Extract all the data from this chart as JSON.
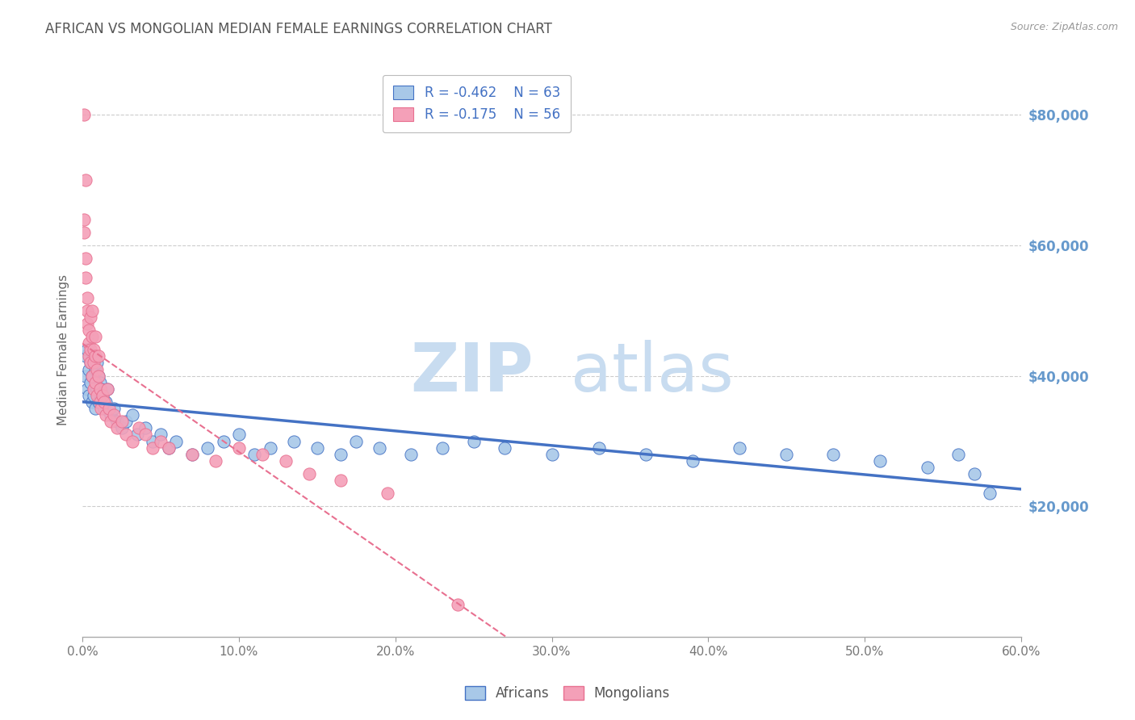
{
  "title": "AFRICAN VS MONGOLIAN MEDIAN FEMALE EARNINGS CORRELATION CHART",
  "source": "Source: ZipAtlas.com",
  "ylabel": "Median Female Earnings",
  "xlim": [
    0.0,
    0.6
  ],
  "ylim": [
    0,
    88000
  ],
  "yticks": [
    0,
    20000,
    40000,
    60000,
    80000
  ],
  "ytick_labels": [
    "",
    "$20,000",
    "$40,000",
    "$60,000",
    "$80,000"
  ],
  "xtick_labels": [
    "0.0%",
    "10.0%",
    "20.0%",
    "30.0%",
    "40.0%",
    "50.0%",
    "60.0%"
  ],
  "xticks": [
    0.0,
    0.1,
    0.2,
    0.3,
    0.4,
    0.5,
    0.6
  ],
  "african_color": "#A8C8E8",
  "mongolian_color": "#F4A0B8",
  "african_line_color": "#4472C4",
  "mongolian_line_color": "#E87090",
  "background_color": "#FFFFFF",
  "grid_color": "#CCCCCC",
  "title_color": "#555555",
  "ytick_color": "#6699CC",
  "legend_r_african": "R = -0.462",
  "legend_n_african": "N = 63",
  "legend_r_mongolian": "R = -0.175",
  "legend_n_mongolian": "N = 56",
  "african_x": [
    0.002,
    0.002,
    0.003,
    0.003,
    0.004,
    0.004,
    0.005,
    0.005,
    0.006,
    0.006,
    0.007,
    0.007,
    0.008,
    0.008,
    0.009,
    0.009,
    0.01,
    0.01,
    0.011,
    0.012,
    0.013,
    0.014,
    0.015,
    0.016,
    0.018,
    0.02,
    0.022,
    0.025,
    0.028,
    0.032,
    0.035,
    0.04,
    0.045,
    0.05,
    0.055,
    0.06,
    0.07,
    0.08,
    0.09,
    0.1,
    0.11,
    0.12,
    0.135,
    0.15,
    0.165,
    0.175,
    0.19,
    0.21,
    0.23,
    0.25,
    0.27,
    0.3,
    0.33,
    0.36,
    0.39,
    0.42,
    0.45,
    0.48,
    0.51,
    0.54,
    0.56,
    0.57,
    0.58
  ],
  "african_y": [
    43000,
    40000,
    44000,
    38000,
    41000,
    37000,
    42000,
    39000,
    40000,
    36000,
    43000,
    37000,
    41000,
    35000,
    42000,
    38000,
    40000,
    36000,
    39000,
    38000,
    37000,
    35000,
    36000,
    38000,
    34000,
    35000,
    33000,
    32000,
    33000,
    34000,
    31000,
    32000,
    30000,
    31000,
    29000,
    30000,
    28000,
    29000,
    30000,
    31000,
    28000,
    29000,
    30000,
    29000,
    28000,
    30000,
    29000,
    28000,
    29000,
    30000,
    29000,
    28000,
    29000,
    28000,
    27000,
    29000,
    28000,
    28000,
    27000,
    26000,
    28000,
    25000,
    22000
  ],
  "mongolian_x": [
    0.001,
    0.001,
    0.001,
    0.002,
    0.002,
    0.002,
    0.003,
    0.003,
    0.003,
    0.004,
    0.004,
    0.004,
    0.005,
    0.005,
    0.005,
    0.006,
    0.006,
    0.006,
    0.007,
    0.007,
    0.007,
    0.008,
    0.008,
    0.008,
    0.009,
    0.009,
    0.01,
    0.01,
    0.011,
    0.011,
    0.012,
    0.013,
    0.014,
    0.015,
    0.016,
    0.017,
    0.018,
    0.02,
    0.022,
    0.025,
    0.028,
    0.032,
    0.036,
    0.04,
    0.045,
    0.05,
    0.055,
    0.07,
    0.085,
    0.1,
    0.115,
    0.13,
    0.145,
    0.165,
    0.195,
    0.24
  ],
  "mongolian_y": [
    80000,
    64000,
    62000,
    70000,
    58000,
    55000,
    52000,
    50000,
    48000,
    47000,
    45000,
    43000,
    49000,
    42000,
    44000,
    50000,
    40000,
    46000,
    42000,
    44000,
    38000,
    43000,
    46000,
    39000,
    41000,
    37000,
    43000,
    40000,
    36000,
    38000,
    35000,
    37000,
    36000,
    34000,
    38000,
    35000,
    33000,
    34000,
    32000,
    33000,
    31000,
    30000,
    32000,
    31000,
    29000,
    30000,
    29000,
    28000,
    27000,
    29000,
    28000,
    27000,
    25000,
    24000,
    22000,
    5000
  ]
}
